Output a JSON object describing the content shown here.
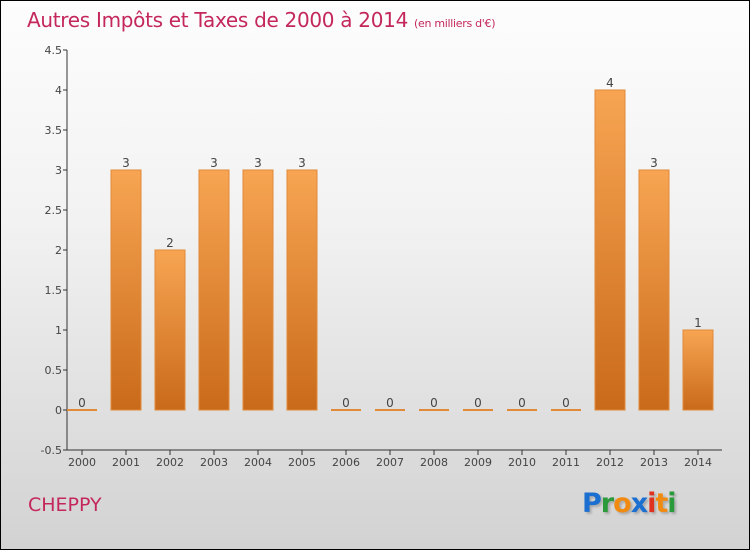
{
  "chart_data": {
    "type": "bar",
    "title": "Autres Impôts et Taxes de 2000 à 2014",
    "subtitle": "(en milliers d'€)",
    "categories": [
      "2000",
      "2001",
      "2002",
      "2003",
      "2004",
      "2005",
      "2006",
      "2007",
      "2008",
      "2009",
      "2010",
      "2011",
      "2012",
      "2013",
      "2014"
    ],
    "values": [
      0,
      3,
      2,
      3,
      3,
      3,
      0,
      0,
      0,
      0,
      0,
      0,
      4,
      3,
      1
    ],
    "yticks": [
      "-0.5",
      "0",
      "0.5",
      "1",
      "1.5",
      "2",
      "2.5",
      "3",
      "3.5",
      "4",
      "4.5"
    ],
    "ylim": [
      -0.5,
      4.5
    ],
    "xlabel": "",
    "ylabel": "",
    "bar_color_top": "#f7a552",
    "bar_color_bottom": "#c96a1a"
  },
  "commune": "CHEPPY",
  "logo": "Proxiti"
}
